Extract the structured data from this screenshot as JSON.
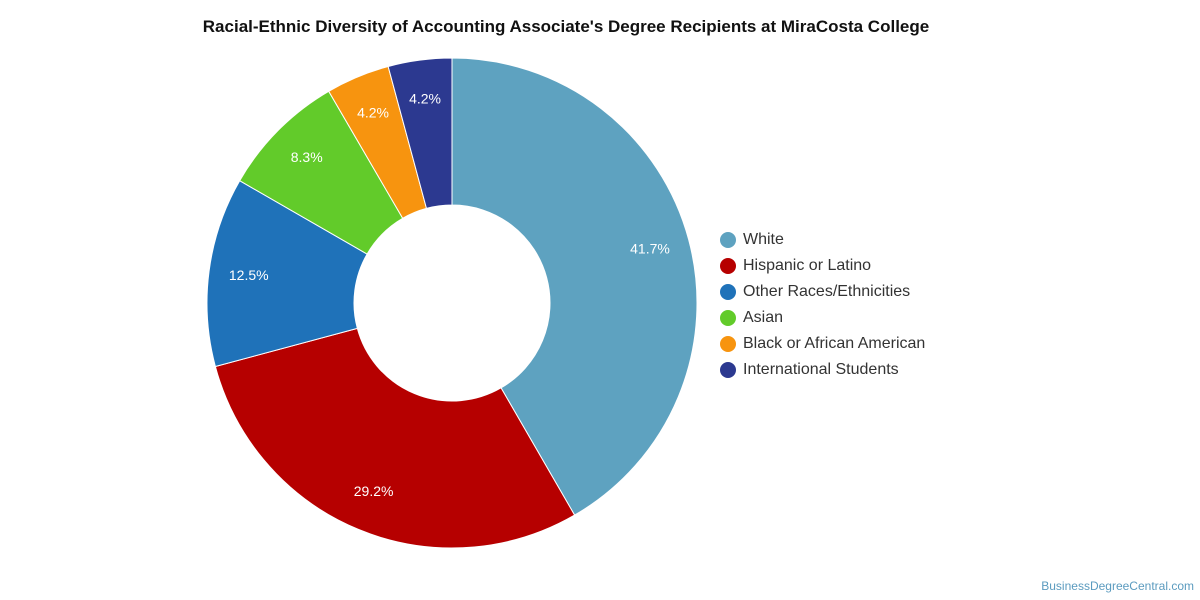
{
  "title": "Racial-Ethnic Diversity of Accounting Associate's Degree Recipients at MiraCosta College",
  "source": "BusinessDegreeCentral.com",
  "chart_data": {
    "type": "pie",
    "donut": true,
    "title": "Racial-Ethnic Diversity of Accounting Associate's Degree Recipients at MiraCosta College",
    "legend_position": "right",
    "slices": [
      {
        "label": "White",
        "value": 41.7,
        "display": "41.7%",
        "color": "#5ea2c0"
      },
      {
        "label": "Hispanic or Latino",
        "value": 29.2,
        "display": "29.2%",
        "color": "#b60000"
      },
      {
        "label": "Other Races/Ethnicities",
        "value": 12.5,
        "display": "12.5%",
        "color": "#1f72b9"
      },
      {
        "label": "Asian",
        "value": 8.3,
        "display": "8.3%",
        "color": "#62cb2a"
      },
      {
        "label": "Black or African American",
        "value": 4.2,
        "display": "4.2%",
        "color": "#f7940f"
      },
      {
        "label": "International Students",
        "value": 4.2,
        "display": "4.2%",
        "color": "#2c3990"
      }
    ]
  }
}
